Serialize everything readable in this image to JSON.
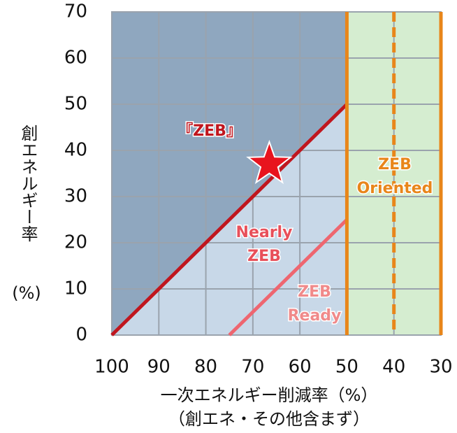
{
  "chart_data": {
    "type": "zeb_map",
    "xlabel": [
      "一次エネルギー削減率（%）",
      "（創エネ・その他含まず）"
    ],
    "ylabel": [
      "創エネルギー率",
      "(%)"
    ],
    "xlim": [
      100,
      30
    ],
    "xticks": [
      100,
      90,
      80,
      70,
      60,
      50,
      40,
      30
    ],
    "ylim": [
      0,
      70
    ],
    "yticks": [
      0,
      10,
      20,
      30,
      40,
      50,
      60,
      70
    ],
    "grid": true,
    "series": [
      {
        "x": [
          100,
          50
        ],
        "values": [
          0,
          50
        ],
        "color": "#c0161e"
      },
      {
        "x": [
          75,
          50
        ],
        "values": [
          0,
          25
        ],
        "color": "#ee6670"
      }
    ],
    "vlines": [
      {
        "x": 50,
        "style": "solid",
        "color": "#e8861a"
      },
      {
        "x": 40,
        "style": "dashed",
        "color": "#e8861a"
      },
      {
        "x": 30,
        "style": "solid",
        "color": "#e8861a"
      }
    ],
    "point": {
      "x": 66.5,
      "y": 37,
      "color": "#e8141e"
    },
    "annotations": [
      {
        "lines": [
          "『ZEB』"
        ],
        "color": "#c0161e"
      },
      {
        "lines": [
          "Nearly",
          "ZEB"
        ],
        "color": "#e8505a"
      },
      {
        "lines": [
          "ZEB",
          "Ready"
        ],
        "color": "#f08a8a"
      },
      {
        "lines": [
          "ZEB",
          "Oriented"
        ],
        "color": "#e8861a"
      }
    ]
  }
}
